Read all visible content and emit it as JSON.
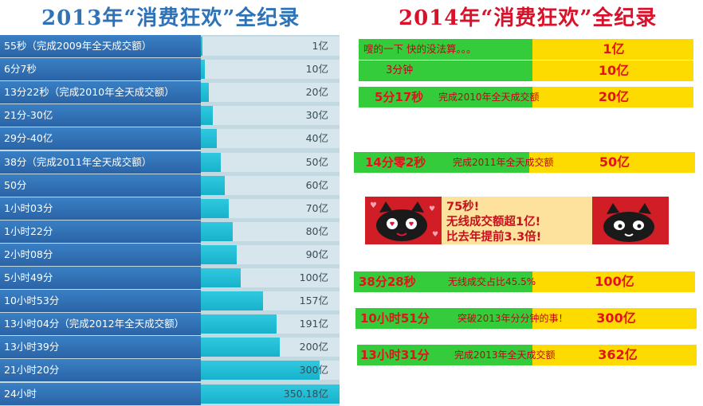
{
  "titles": {
    "left": "2013年“消费狂欢”全纪录",
    "right": "2014年“消费狂欢”全纪录"
  },
  "colors": {
    "title_2013": "#2e72b8",
    "title_2014": "#d8122a",
    "bar_2013": "#20bcd4",
    "label_bg_2013": "#2e6fb4",
    "green_2014": "#34cc3a",
    "yellow_2014": "#fddb00"
  },
  "chart_data": [
    {
      "type": "bar",
      "title": "2013年“消费狂欢”全纪录",
      "unit": "亿",
      "categories": [
        "55秒（完成2009年全天成交额）",
        "6分7秒",
        "13分22秒（完成2010年全天成交额）",
        "21分-30亿",
        "29分-40亿",
        "38分（完成2011年全天成交额）",
        "50分",
        "1小时03分",
        "1小时22分",
        "2小时08分",
        "5小时49分",
        "10小时53分",
        "13小时04分（完成2012年全天成交额）",
        "13小时39分",
        "21小时20分",
        "24小时"
      ],
      "values": [
        1,
        10,
        20,
        30,
        40,
        50,
        60,
        70,
        80,
        90,
        100,
        157,
        191,
        200,
        300,
        350.18
      ],
      "value_labels": [
        "1亿",
        "10亿",
        "20亿",
        "30亿",
        "40亿",
        "50亿",
        "60亿",
        "70亿",
        "80亿",
        "90亿",
        "100亿",
        "157亿",
        "191亿",
        "200亿",
        "300亿",
        "350.18亿"
      ],
      "ylim": [
        0,
        350.18
      ]
    },
    {
      "type": "table",
      "title": "2014年“消费狂欢”全纪录",
      "rows": [
        {
          "time": "嗖的一下 快的没法算。。。",
          "note": "",
          "value": "1亿"
        },
        {
          "time": "3分钟",
          "note": "",
          "value": "10亿"
        },
        {
          "time": "5分17秒",
          "note": "完成2010年全天成交额",
          "value": "20亿"
        },
        {
          "time": "14分零2秒",
          "note": "完成2011年全天成交额",
          "value": "50亿"
        },
        {
          "time": "38分28秒",
          "note": "无线成交占比45.5%",
          "value": "100亿"
        },
        {
          "time": "10小时51分",
          "note": "突破2013年分分钟的事！",
          "value": "300亿"
        },
        {
          "time": "13小时31分",
          "note": "完成2013年全天成交额",
          "value": "362亿"
        }
      ]
    }
  ],
  "banner": {
    "line1": "75秒!",
    "line2": "无线成交额超1亿!",
    "line3": "比去年提前3.3倍!",
    "left_image": "tmall-cat-hearts-icon",
    "right_image": "tmall-cat-icon"
  }
}
